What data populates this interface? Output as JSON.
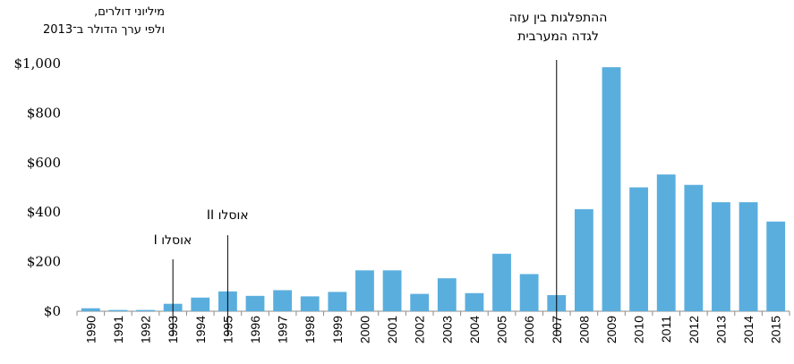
{
  "chart_data": {
    "type": "bar",
    "ylabel_lines": [
      "מיליוני דולרים,",
      "ולפי ערך הדולר ב־2013"
    ],
    "categories": [
      "1990",
      "1991",
      "1992",
      "1993",
      "1994",
      "1995",
      "1996",
      "1997",
      "1998",
      "1999",
      "2000",
      "2001",
      "2002",
      "2003",
      "2004",
      "2005",
      "2006",
      "2007",
      "2008",
      "2009",
      "2010",
      "2011",
      "2012",
      "2013",
      "2014",
      "2015"
    ],
    "values": [
      12,
      5,
      5,
      30,
      55,
      80,
      62,
      85,
      60,
      78,
      165,
      165,
      70,
      133,
      73,
      232,
      150,
      65,
      412,
      985,
      500,
      552,
      510,
      440,
      440,
      362
    ],
    "ylim": [
      0,
      1000
    ],
    "yticks": [
      0,
      200,
      400,
      600,
      800,
      1000
    ],
    "ytick_labels": [
      "$0",
      "$200",
      "$400",
      "$600",
      "$800",
      "$1,000"
    ],
    "bar_color": "#5aaede",
    "annotations": [
      {
        "year": "1993",
        "lines": [
          "אוסלו I"
        ]
      },
      {
        "year": "1995",
        "lines": [
          "אוסלו II"
        ]
      },
      {
        "year": "2007",
        "lines": [
          "ההתפלגות בין עזה",
          "לגדה המערבית"
        ]
      }
    ]
  }
}
